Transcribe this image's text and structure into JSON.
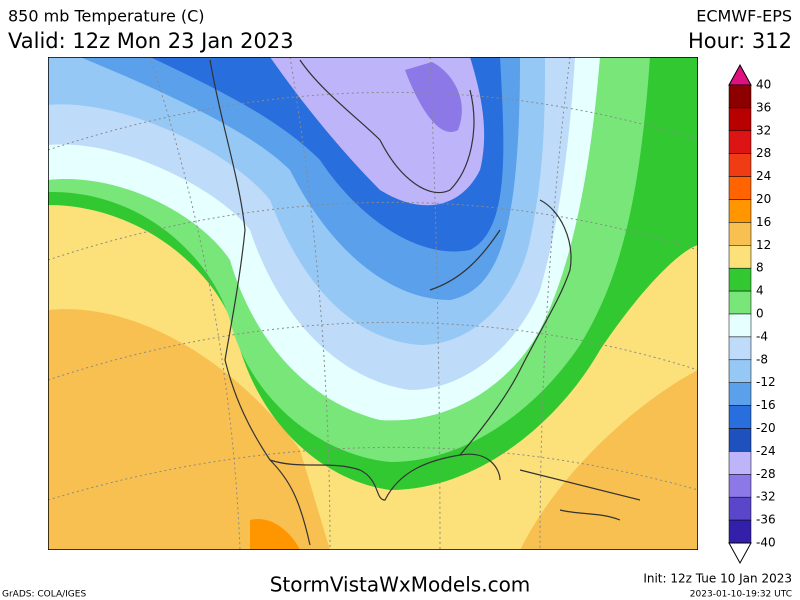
{
  "header": {
    "title": "850 mb Temperature (C)",
    "valid": "Valid: 12z Mon 23 Jan 2023",
    "model": "ECMWF-EPS",
    "hour": "Hour: 312"
  },
  "colorbar": {
    "levels": [
      40,
      36,
      32,
      28,
      24,
      20,
      16,
      12,
      8,
      4,
      0,
      -4,
      -8,
      -12,
      -16,
      -20,
      -24,
      -28,
      -32,
      -36,
      -40
    ],
    "colors": [
      "#e0117f",
      "#8c0000",
      "#b80000",
      "#dc1414",
      "#f03c14",
      "#ff6400",
      "#ff9600",
      "#f8c050",
      "#fce17a",
      "#32c832",
      "#78e678",
      "#e6ffff",
      "#bedcfa",
      "#96c8f5",
      "#5aa0eb",
      "#286edc",
      "#1e50be",
      "#beb4fa",
      "#8c78e6",
      "#5a46c8",
      "#3220aa",
      "#140a8c",
      "#ffffff"
    ]
  },
  "footer": {
    "credit": "GrADS: COLA/IGES",
    "site": "StormVistaWxModels.com",
    "init": "Init: 12z Tue 10 Jan 2023",
    "timestamp": "2023-01-10-19:32 UTC"
  }
}
